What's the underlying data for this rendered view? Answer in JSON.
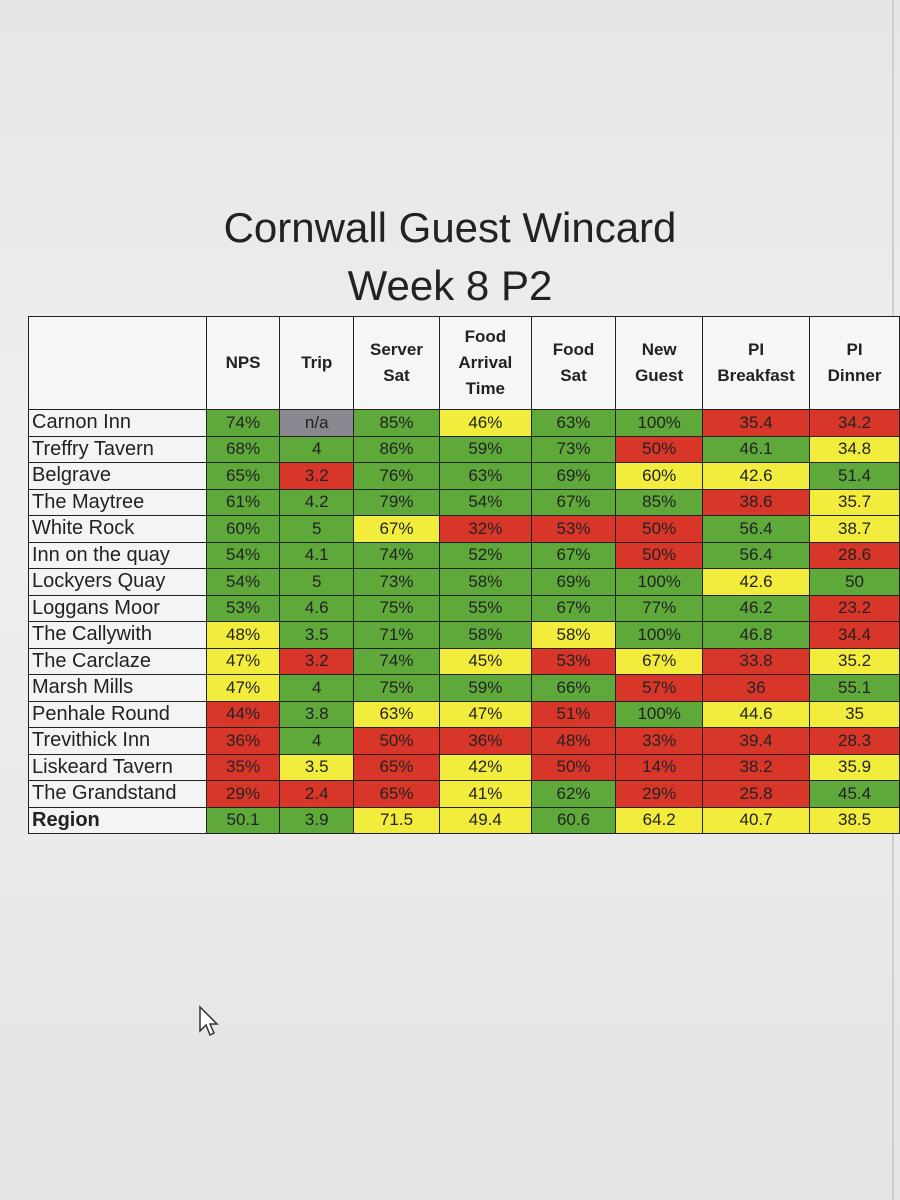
{
  "header": {
    "title": "Cornwall Guest Wincard",
    "subtitle": "Week 8 P2"
  },
  "table": {
    "columns": [
      "",
      "NPS",
      "Trip",
      "Server\nSat",
      "Food\nArrival\nTime",
      "Food\nSat",
      "New\nGuest",
      "PI\nBreakfast",
      "PI\nDinner"
    ],
    "rows": [
      {
        "name": "Carnon Inn",
        "cells": [
          "74%",
          "n/a",
          "85%",
          "46%",
          "63%",
          "100%",
          "35.4",
          "34.2"
        ],
        "colors": [
          "#5fa83a",
          "#8a8790",
          "#5fa83a",
          "#f2ec3c",
          "#5fa83a",
          "#5fa83a",
          "#d9362a",
          "#d9362a"
        ]
      },
      {
        "name": "Treffry Tavern",
        "cells": [
          "68%",
          "4",
          "86%",
          "59%",
          "73%",
          "50%",
          "46.1",
          "34.8"
        ],
        "colors": [
          "#5fa83a",
          "#5fa83a",
          "#5fa83a",
          "#5fa83a",
          "#5fa83a",
          "#d9362a",
          "#5fa83a",
          "#f2ec3c"
        ]
      },
      {
        "name": "Belgrave",
        "cells": [
          "65%",
          "3.2",
          "76%",
          "63%",
          "69%",
          "60%",
          "42.6",
          "51.4"
        ],
        "colors": [
          "#5fa83a",
          "#d9362a",
          "#5fa83a",
          "#5fa83a",
          "#5fa83a",
          "#f2ec3c",
          "#f2ec3c",
          "#5fa83a"
        ]
      },
      {
        "name": "The Maytree",
        "cells": [
          "61%",
          "4.2",
          "79%",
          "54%",
          "67%",
          "85%",
          "38.6",
          "35.7"
        ],
        "colors": [
          "#5fa83a",
          "#5fa83a",
          "#5fa83a",
          "#5fa83a",
          "#5fa83a",
          "#5fa83a",
          "#d9362a",
          "#f2ec3c"
        ]
      },
      {
        "name": "White Rock",
        "cells": [
          "60%",
          "5",
          "67%",
          "32%",
          "53%",
          "50%",
          "56.4",
          "38.7"
        ],
        "colors": [
          "#5fa83a",
          "#5fa83a",
          "#f2ec3c",
          "#d9362a",
          "#d9362a",
          "#d9362a",
          "#5fa83a",
          "#f2ec3c"
        ]
      },
      {
        "name": "Inn on the quay",
        "cells": [
          "54%",
          "4.1",
          "74%",
          "52%",
          "67%",
          "50%",
          "56.4",
          "28.6"
        ],
        "colors": [
          "#5fa83a",
          "#5fa83a",
          "#5fa83a",
          "#5fa83a",
          "#5fa83a",
          "#d9362a",
          "#5fa83a",
          "#d9362a"
        ]
      },
      {
        "name": "Lockyers Quay",
        "cells": [
          "54%",
          "5",
          "73%",
          "58%",
          "69%",
          "100%",
          "42.6",
          "50"
        ],
        "colors": [
          "#5fa83a",
          "#5fa83a",
          "#5fa83a",
          "#5fa83a",
          "#5fa83a",
          "#5fa83a",
          "#f2ec3c",
          "#5fa83a"
        ]
      },
      {
        "name": "Loggans Moor",
        "cells": [
          "53%",
          "4.6",
          "75%",
          "55%",
          "67%",
          "77%",
          "46.2",
          "23.2"
        ],
        "colors": [
          "#5fa83a",
          "#5fa83a",
          "#5fa83a",
          "#5fa83a",
          "#5fa83a",
          "#5fa83a",
          "#5fa83a",
          "#d9362a"
        ]
      },
      {
        "name": "The Callywith",
        "cells": [
          "48%",
          "3.5",
          "71%",
          "58%",
          "58%",
          "100%",
          "46.8",
          "34.4"
        ],
        "colors": [
          "#f2ec3c",
          "#5fa83a",
          "#5fa83a",
          "#5fa83a",
          "#f2ec3c",
          "#5fa83a",
          "#5fa83a",
          "#d9362a"
        ]
      },
      {
        "name": "The Carclaze",
        "cells": [
          "47%",
          "3.2",
          "74%",
          "45%",
          "53%",
          "67%",
          "33.8",
          "35.2"
        ],
        "colors": [
          "#f2ec3c",
          "#d9362a",
          "#5fa83a",
          "#f2ec3c",
          "#d9362a",
          "#f2ec3c",
          "#d9362a",
          "#f2ec3c"
        ]
      },
      {
        "name": "Marsh Mills",
        "cells": [
          "47%",
          "4",
          "75%",
          "59%",
          "66%",
          "57%",
          "36",
          "55.1"
        ],
        "colors": [
          "#f2ec3c",
          "#5fa83a",
          "#5fa83a",
          "#5fa83a",
          "#5fa83a",
          "#d9362a",
          "#d9362a",
          "#5fa83a"
        ]
      },
      {
        "name": "Penhale Round",
        "cells": [
          "44%",
          "3.8",
          "63%",
          "47%",
          "51%",
          "100%",
          "44.6",
          "35"
        ],
        "colors": [
          "#d9362a",
          "#5fa83a",
          "#f2ec3c",
          "#f2ec3c",
          "#d9362a",
          "#5fa83a",
          "#f2ec3c",
          "#f2ec3c"
        ]
      },
      {
        "name": "Trevithick Inn",
        "cells": [
          "36%",
          "4",
          "50%",
          "36%",
          "48%",
          "33%",
          "39.4",
          "28.3"
        ],
        "colors": [
          "#d9362a",
          "#5fa83a",
          "#d9362a",
          "#d9362a",
          "#d9362a",
          "#d9362a",
          "#d9362a",
          "#d9362a"
        ]
      },
      {
        "name": "Liskeard Tavern",
        "cells": [
          "35%",
          "3.5",
          "65%",
          "42%",
          "50%",
          "14%",
          "38.2",
          "35.9"
        ],
        "colors": [
          "#d9362a",
          "#f2ec3c",
          "#d9362a",
          "#f2ec3c",
          "#d9362a",
          "#d9362a",
          "#d9362a",
          "#f2ec3c"
        ]
      },
      {
        "name": "The Grandstand",
        "cells": [
          "29%",
          "2.4",
          "65%",
          "41%",
          "62%",
          "29%",
          "25.8",
          "45.4"
        ],
        "colors": [
          "#d9362a",
          "#d9362a",
          "#d9362a",
          "#f2ec3c",
          "#5fa83a",
          "#d9362a",
          "#d9362a",
          "#5fa83a"
        ]
      },
      {
        "name": "Region",
        "cells": [
          "50.1",
          "3.9",
          "71.5",
          "49.4",
          "60.6",
          "64.2",
          "40.7",
          "38.5"
        ],
        "colors": [
          "#5fa83a",
          "#5fa83a",
          "#f2ec3c",
          "#f2ec3c",
          "#5fa83a",
          "#f2ec3c",
          "#f2ec3c",
          "#f2ec3c"
        ]
      }
    ]
  }
}
